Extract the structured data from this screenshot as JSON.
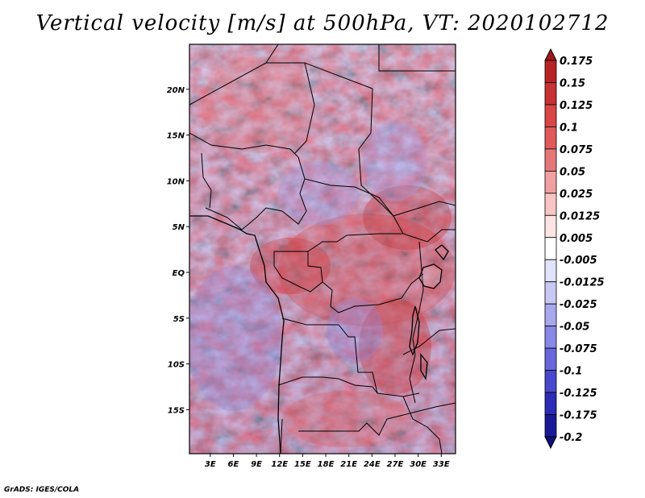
{
  "title": "Vertical velocity [m/s] at 500hPa, VT: 2020102712",
  "credit": "GrADS: IGES/COLA",
  "map": {
    "lat_labels": [
      "20N",
      "15N",
      "10N",
      "5N",
      "EQ",
      "5S",
      "10S",
      "15S"
    ],
    "lat_values": [
      20,
      15,
      10,
      5,
      0,
      -5,
      -10,
      -15
    ],
    "lon_labels": [
      "3E",
      "6E",
      "9E",
      "12E",
      "15E",
      "18E",
      "21E",
      "24E",
      "27E",
      "30E",
      "33E"
    ],
    "lon_values": [
      3,
      6,
      9,
      12,
      15,
      18,
      21,
      24,
      27,
      30,
      33
    ]
  },
  "colorbar": {
    "levels": [
      "0.175",
      "0.15",
      "0.125",
      "0.1",
      "0.075",
      "0.05",
      "0.025",
      "0.0125",
      "0.005",
      "-0.005",
      "-0.0125",
      "-0.025",
      "-0.05",
      "-0.075",
      "-0.1",
      "-0.125",
      "-0.175",
      "-0.2"
    ],
    "colors": [
      "#a01818",
      "#b82424",
      "#c83232",
      "#d84646",
      "#e05a5a",
      "#e47878",
      "#f0a0a0",
      "#f8c4c4",
      "#fce4e4",
      "#ffffff",
      "#e2e2fa",
      "#c8c8f4",
      "#a8a8ee",
      "#8888e6",
      "#6868dc",
      "#4848cc",
      "#2c2cb4",
      "#1a1a98",
      "#101080"
    ]
  }
}
